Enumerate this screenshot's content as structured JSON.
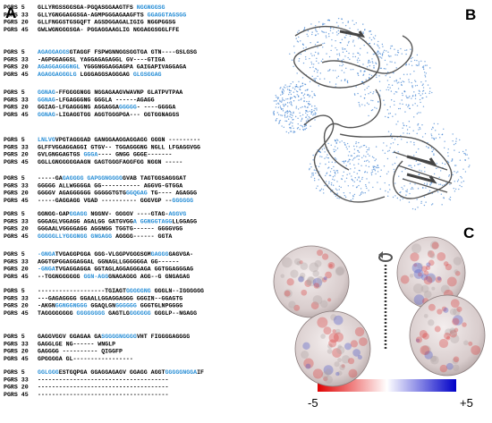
{
  "panels": {
    "a": "A",
    "b": "B",
    "c": "C"
  },
  "alignment": {
    "blocks": [
      {
        "rows": [
          {
            "name": "PGRS 5",
            "segments": [
              {
                "text": "GLLYRGSSGGSGA-PGQASGGAAGTFS ",
                "blue": false
              },
              {
                "text": "NGGNGGSG",
                "blue": true
              }
            ]
          },
          {
            "name": "PGRS 33",
            "segments": [
              {
                "text": "GLLYGNGGAGGSGA-AGMPGGGAGAAGFTS ",
                "blue": false
              },
              {
                "text": "GGAGGTAGSGG",
                "blue": true
              }
            ]
          },
          {
            "name": "PGRS 20",
            "segments": [
              {
                "text": "GLLFNGGSTGSGQFT AGSDGGAGALIGIG NGGPGGSG",
                "blue": false
              }
            ]
          },
          {
            "name": "PGRS 45",
            "segments": [
              {
                "text": "GWLWGNGGGSGA- PGGAGGAAGLIG NGGAGGSGGLFFE",
                "blue": false
              }
            ]
          }
        ]
      },
      {
        "rows": [
          {
            "name": "PGRS 5",
            "segments": [
              {
                "text": "AGAGGAGGS",
                "blue": true
              },
              {
                "text": "GTAGGF FSPWGNNGGSGGTGA GTN----GSLGSG",
                "blue": false
              }
            ]
          },
          {
            "name": "PGRS 33",
            "segments": [
              {
                "text": "-AGPGGAGGSL YAGGAGAGAGGL GV----GTIGA",
                "blue": false
              }
            ]
          },
          {
            "name": "PGRS 20",
            "segments": [
              {
                "text": "AGAGGAGGGNGL",
                "blue": true
              },
              {
                "text": " YGGGNGGAGGAGPA GAIGAPIVAGGAGA",
                "blue": false
              }
            ]
          },
          {
            "name": "PGRS 45",
            "segments": [
              {
                "text": "AGAGGAGGGLG",
                "blue": true
              },
              {
                "text": " LGGGAGGSAGGGAG ",
                "blue": false
              },
              {
                "text": "GLGSGGAG",
                "blue": true
              }
            ]
          }
        ]
      },
      {
        "rows": [
          {
            "name": "PGRS 5",
            "segments": [
              {
                "text": "GGNAG",
                "blue": true
              },
              {
                "text": "-FFGGGGNGG NGGAGAAGVWAVNP GLATPVTPAA",
                "blue": false
              }
            ]
          },
          {
            "name": "PGRS 33",
            "segments": [
              {
                "text": "GGNAG",
                "blue": true
              },
              {
                "text": "-LFGAGGGNG GGGLA ------AGAGG",
                "blue": false
              }
            ]
          },
          {
            "name": "PGRS 20",
            "segments": [
              {
                "text": "GGIAG-LFGAGGGNG AGGAGGA",
                "blue": false
              },
              {
                "text": "GGGGG",
                "blue": true
              },
              {
                "text": "- ----GGGGA",
                "blue": false
              }
            ]
          },
          {
            "name": "PGRS 45",
            "segments": [
              {
                "text": "GGNAG",
                "blue": true
              },
              {
                "text": "-LIGAGGTGG AGGTGGGPGA--- GGTGGNAGGS",
                "blue": false
              }
            ]
          }
        ]
      },
      {
        "rows": [
          {
            "name": "PGRS 5",
            "segments": [
              {
                "text": "LNLVG",
                "blue": true
              },
              {
                "text": "VPGTAGGGAD GANGGAAGGAGGAGG GGGN ---------",
                "blue": false
              }
            ]
          },
          {
            "name": "PGRS 33",
            "segments": [
              {
                "text": "GLFFVGGAGGAGGI GTGV-- TGGAGGGNG NGLL LFGAGGVGG",
                "blue": false
              }
            ]
          },
          {
            "name": "PGRS 20",
            "segments": [
              {
                "text": "GVLGNGGAGTGS ",
                "blue": false
              },
              {
                "text": "GGGA",
                "blue": true
              },
              {
                "text": "---- GNGG GGGE-------",
                "blue": false
              }
            ]
          },
          {
            "name": "PGRS 45",
            "segments": [
              {
                "text": "GGLLGNGGGGGAAGN GAGTGGGFAGGFGG NGGN -----",
                "blue": false
              }
            ]
          }
        ]
      },
      {
        "rows": [
          {
            "name": "PGRS 5",
            "segments": [
              {
                "text": "-----GA",
                "blue": false
              },
              {
                "text": "GAGGGG GAPGGNGGGG",
                "blue": true
              },
              {
                "text": "GVAB TAGTGGSAGGGAT",
                "blue": false
              }
            ]
          },
          {
            "name": "PGRS 33",
            "segments": [
              {
                "text": "GGGGG ALLWGGGGA GG----------- AGGVG-GTGGA",
                "blue": false
              }
            ]
          },
          {
            "name": "PGRS 20",
            "segments": [
              {
                "text": "GGGGV AGAGGGGGG GGGGGTGTG",
                "blue": false
              },
              {
                "text": "GGQGAG",
                "blue": true
              },
              {
                "text": " TG---- AGAGGG",
                "blue": false
              }
            ]
          },
          {
            "name": "PGRS 45",
            "segments": [
              {
                "text": "-----GAGGAGG VGAD ---------- GGGVGP --",
                "blue": false
              },
              {
                "text": "GGGGGG",
                "blue": true
              }
            ]
          }
        ]
      },
      {
        "rows": [
          {
            "name": "PGRS 5",
            "segments": [
              {
                "text": "GGNGG-GAP",
                "blue": false
              },
              {
                "text": "GGAGG",
                "blue": true
              },
              {
                "text": " NGGNV- GGGGV ----GTAG-",
                "blue": false
              },
              {
                "text": "AGGVG",
                "blue": true
              }
            ]
          },
          {
            "name": "PGRS 33",
            "segments": [
              {
                "text": "GGGAGLVGGAGG AGALGG GATGVGG",
                "blue": false
              },
              {
                "text": "A GGNGGTAGG",
                "blue": true
              },
              {
                "text": "LLGGAGG",
                "blue": false
              }
            ]
          },
          {
            "name": "PGRS 20",
            "segments": [
              {
                "text": "GGGAALVGGGGAGG AGGNGG TGGTG------ GGGGVGG",
                "blue": false
              }
            ]
          },
          {
            "name": "PGRS 45",
            "segments": [
              {
                "text": "GGGGGLLYGG",
                "blue": true
              },
              {
                "text": "GNGG GNGAGG",
                "blue": true
              },
              {
                "text": " AGGGG------ GGTA",
                "blue": false
              }
            ]
          }
        ]
      },
      {
        "rows": [
          {
            "name": "PGRS 5",
            "segments": [
              {
                "text": "-GNGA",
                "blue": true
              },
              {
                "text": "TVGAGGPGGA GGG-VLGGPVGGGSGM",
                "blue": false
              },
              {
                "text": "GAGGG",
                "blue": true
              },
              {
                "text": "GAGVGA-",
                "blue": false
              }
            ]
          },
          {
            "name": "PGRS 33",
            "segments": [
              {
                "text": "AGGTGPGGAGGAGGAL GGNAGLLGGGGGGA GG------",
                "blue": false
              }
            ]
          },
          {
            "name": "PGRS 20",
            "segments": [
              {
                "text": "-GNGA",
                "blue": true
              },
              {
                "text": "TVGAGGAGGA GGTAGLAGGAGGGAGA GGTGGAGGGAG",
                "blue": false
              }
            ]
          },
          {
            "name": "PGRS 45",
            "segments": [
              {
                "text": "--TGGNGGGGGG ",
                "blue": false
              },
              {
                "text": "GGN-AGG",
                "blue": true
              },
              {
                "text": "GNAGAGGG AGG--G GNGAGAG",
                "blue": false
              }
            ]
          }
        ]
      },
      {
        "rows": [
          {
            "name": "PGRS 5",
            "segments": [
              {
                "text": "-------------------TGIAGT",
                "blue": false
              },
              {
                "text": "GGGGGNG",
                "blue": true
              },
              {
                "text": " GGGLN--IGGGGGG",
                "blue": false
              }
            ]
          },
          {
            "name": "PGRS 33",
            "segments": [
              {
                "text": "---GAGAGGGG GGAALLGGAGGAGGG GGGIN--GGAGTG",
                "blue": false
              }
            ]
          },
          {
            "name": "PGRS 20",
            "segments": [
              {
                "text": "-AKGN",
                "blue": false
              },
              {
                "text": "GGNGGNGGG",
                "blue": true
              },
              {
                "text": " GGAQLGN",
                "blue": false
              },
              {
                "text": "GGGGGG",
                "blue": true
              },
              {
                "text": " GGGTGLNPGGGG",
                "blue": false
              }
            ]
          },
          {
            "name": "PGRS 45",
            "segments": [
              {
                "text": "TAGGGGGGGG ",
                "blue": false
              },
              {
                "text": "GGGGGGGG",
                "blue": true
              },
              {
                "text": " GAGTLG",
                "blue": false
              },
              {
                "text": "GGGGGG",
                "blue": true
              },
              {
                "text": " GGGLP--NGAGG",
                "blue": false
              }
            ]
          }
        ]
      },
      {
        "rows": [
          {
            "name": "PGRS 5",
            "segments": [
              {
                "text": "GAGGVGGV GGAGAA GA",
                "blue": false
              },
              {
                "text": "SGGGGNGGGG",
                "blue": true
              },
              {
                "text": "VHT FIGGGGAGGGG",
                "blue": false
              }
            ]
          },
          {
            "name": "PGRS 33",
            "segments": [
              {
                "text": "GAGGLGE NG------ WNGLP",
                "blue": false
              }
            ]
          },
          {
            "name": "PGRS 20",
            "segments": [
              {
                "text": "GAGGGG ---------- QIGGFP",
                "blue": false
              }
            ]
          },
          {
            "name": "PGRS 45",
            "segments": [
              {
                "text": "GPGGGGA GL-----------------",
                "blue": false
              }
            ]
          }
        ]
      },
      {
        "rows": [
          {
            "name": "PGRS 5",
            "segments": [
              {
                "text": "GGLGGG",
                "blue": true
              },
              {
                "text": "ESTGQPGA GGAGGAGAGV GGAGG AGGT",
                "blue": false
              },
              {
                "text": "GGGGGNGGA",
                "blue": true
              },
              {
                "text": "IF",
                "blue": false
              }
            ]
          },
          {
            "name": "PGRS 33",
            "segments": [
              {
                "text": "-------------------------------------",
                "blue": false
              }
            ]
          },
          {
            "name": "PGRS 20",
            "segments": [
              {
                "text": "-------------------------------------",
                "blue": false
              }
            ]
          },
          {
            "name": "PGRS 45",
            "segments": [
              {
                "text": "-------------------------------------",
                "blue": false
              }
            ]
          }
        ]
      }
    ]
  },
  "scale": {
    "min": "-5",
    "max": "+5"
  }
}
